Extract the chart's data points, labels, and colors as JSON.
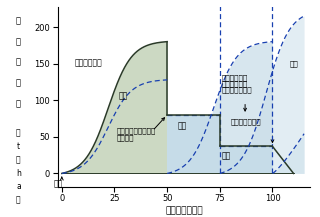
{
  "xlim": [
    -2,
    118
  ],
  "ylim": [
    -18,
    228
  ],
  "xticks": [
    0,
    25,
    50,
    75,
    100
  ],
  "yticks": [
    0,
    50,
    100,
    150,
    200
  ],
  "xlabel": "経過年数（年）",
  "biomass_fill": "#ccd9c3",
  "blue_fill": "#c6dce8",
  "solid_line": "#2a3a28",
  "dashed_color": "#1840b0",
  "harvest_year": 50,
  "house_end": 75,
  "furniture_end": 100,
  "house_level": 80,
  "furniture_level": 37,
  "biomass_peak": 180
}
